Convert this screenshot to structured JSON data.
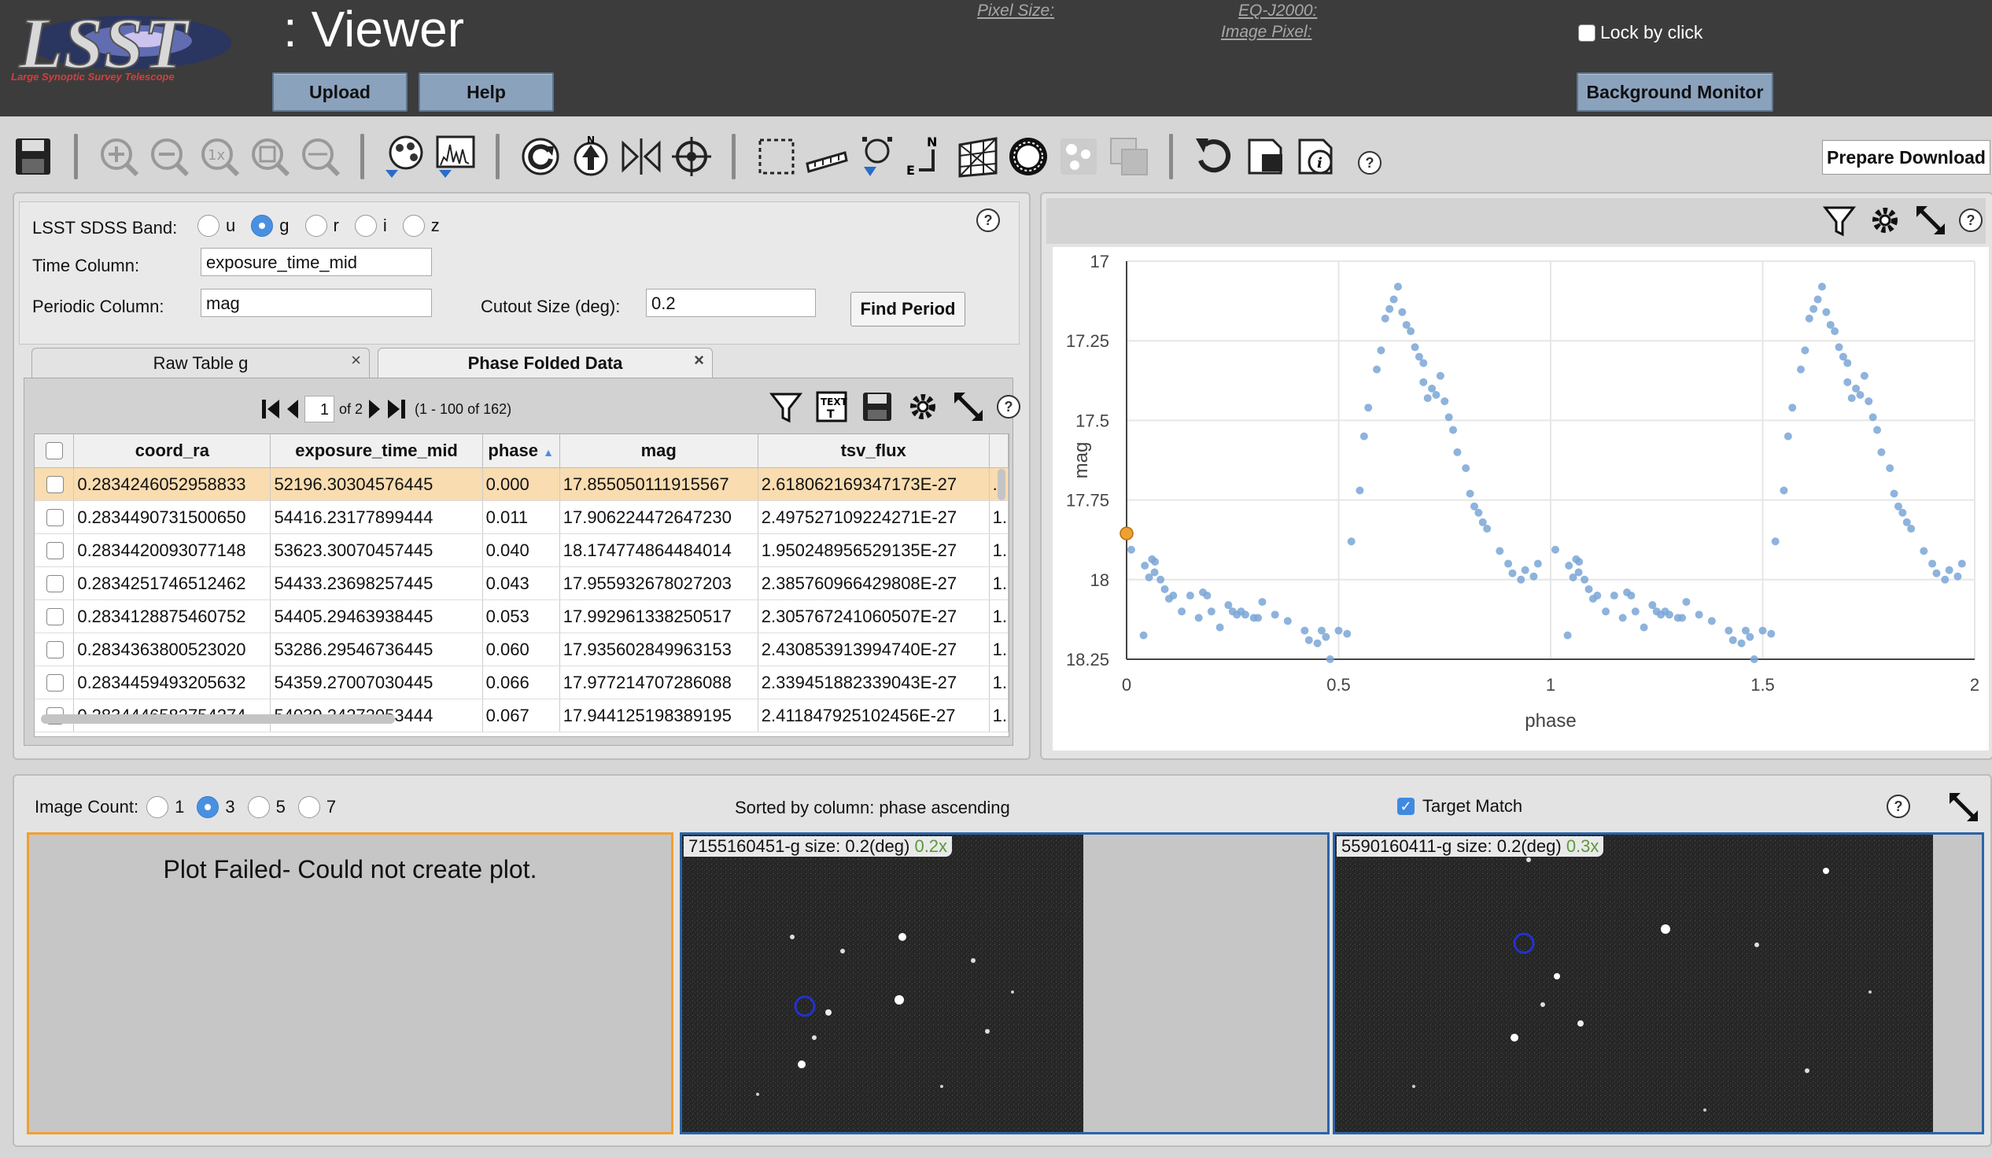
{
  "header": {
    "app_title": ": Viewer",
    "logo_text": "LSST",
    "logo_subtitle": "Large Synoptic Survey Telescope",
    "upload_label": "Upload",
    "help_label": "Help",
    "pixel_size_label": "Pixel Size:",
    "eq_label": "EQ-J2000:",
    "image_pixel_label": "Image Pixel:",
    "lock_label": "Lock by click",
    "background_monitor_label": "Background Monitor"
  },
  "toolbar": {
    "icons": [
      "save-icon",
      "zoom-in-icon",
      "zoom-out-icon",
      "zoom-1x-icon",
      "zoom-fit-icon",
      "zoom-fill-icon",
      "color-stretch-icon",
      "histogram-icon",
      "rotate-icon",
      "north-up-icon",
      "flip-icon",
      "center-target-icon",
      "select-area-icon",
      "distance-tool-icon",
      "marker-icon",
      "north-east-arrow-icon",
      "grid-icon",
      "mask-icon",
      "layers-icon",
      "overlays-icon",
      "restore-icon",
      "crop-icon",
      "info-icon"
    ],
    "prepare_download_label": "Prepare Download",
    "help_symbol": "?"
  },
  "form": {
    "band_label": "LSST SDSS Band:",
    "bands": [
      "u",
      "g",
      "r",
      "i",
      "z"
    ],
    "selected_band": "g",
    "time_column_label": "Time Column:",
    "time_column_value": "exposure_time_mid",
    "periodic_column_label": "Periodic Column:",
    "periodic_column_value": "mag",
    "cutout_label": "Cutout Size (deg):",
    "cutout_value": "0.2",
    "find_period_label": "Find Period"
  },
  "tabs": [
    {
      "label": "Raw Table g",
      "active": false,
      "close": "×"
    },
    {
      "label": "Phase Folded Data",
      "active": true,
      "close": "×"
    }
  ],
  "table": {
    "page_value": "1",
    "page_of": "of 2",
    "range_text": "(1 - 100 of 162)",
    "columns": [
      "coord_ra",
      "exposure_time_mid",
      "phase",
      "mag",
      "tsv_flux"
    ],
    "rows": [
      [
        "0.2834246052958833",
        "52196.30304576445",
        "0.000",
        "17.855050111915567",
        "2.618062169347173E-27",
        "."
      ],
      [
        "0.2834490731500650",
        "54416.23177899444",
        "0.011",
        "17.906224472647230",
        "2.497527109224271E-27",
        "1."
      ],
      [
        "0.2834420093077148",
        "53623.30070457445",
        "0.040",
        "18.174774864484014",
        "1.950248956529135E-27",
        "1."
      ],
      [
        "0.2834251746512462",
        "54433.23698257445",
        "0.043",
        "17.955932678027203",
        "2.385760966429808E-27",
        "1."
      ],
      [
        "0.2834128875460752",
        "54405.29463938445",
        "0.053",
        "17.992961338250517",
        "2.305767241060507E-27",
        "1."
      ],
      [
        "0.2834363800523020",
        "53286.29546736445",
        "0.060",
        "17.935602849963153",
        "2.430853913994740E-27",
        "1."
      ],
      [
        "0.2834459493205632",
        "54359.27007030445",
        "0.066",
        "17.977214707286088",
        "2.339451882339043E-27",
        "1."
      ],
      [
        "0.2834446582754274",
        "54039.24272053444",
        "0.067",
        "17.944125198389195",
        "2.411847925102456E-27",
        "1."
      ]
    ],
    "selected_row": 0
  },
  "chart_data": {
    "type": "scatter",
    "xlabel": "phase",
    "ylabel": "mag",
    "xlim": [
      0,
      2
    ],
    "ylim": [
      18.25,
      17
    ],
    "y_inverted": true,
    "xticks": [
      "0",
      "0.5",
      "1",
      "1.5",
      "2"
    ],
    "yticks": [
      "17",
      "17.25",
      "17.5",
      "17.75",
      "18",
      "18.25"
    ],
    "grid": true,
    "highlight": {
      "x": 0.0,
      "y": 17.855,
      "color": "#f0a030"
    },
    "series": [
      {
        "color": "#7aa6d6",
        "x": [
          0.011,
          0.04,
          0.043,
          0.053,
          0.06,
          0.066,
          0.067,
          0.08,
          0.09,
          0.1,
          0.11,
          0.13,
          0.15,
          0.17,
          0.18,
          0.19,
          0.2,
          0.22,
          0.24,
          0.25,
          0.26,
          0.27,
          0.28,
          0.3,
          0.31,
          0.32,
          0.35,
          0.38,
          0.42,
          0.43,
          0.45,
          0.46,
          0.47,
          0.48,
          0.5,
          0.52,
          0.53,
          0.55,
          0.56,
          0.57,
          0.59,
          0.6,
          0.61,
          0.62,
          0.63,
          0.64,
          0.65,
          0.66,
          0.67,
          0.68,
          0.69,
          0.7,
          0.7,
          0.71,
          0.72,
          0.73,
          0.74,
          0.75,
          0.76,
          0.77,
          0.78,
          0.8,
          0.81,
          0.82,
          0.83,
          0.84,
          0.85,
          0.88,
          0.9,
          0.91,
          0.93,
          0.94,
          0.96,
          0.97
        ],
        "y": [
          17.906,
          18.175,
          17.956,
          17.993,
          17.936,
          17.977,
          17.944,
          18.0,
          18.03,
          18.06,
          18.05,
          18.1,
          18.05,
          18.12,
          18.04,
          18.05,
          18.1,
          18.15,
          18.08,
          18.1,
          18.11,
          18.1,
          18.11,
          18.12,
          18.12,
          18.07,
          18.11,
          18.13,
          18.16,
          18.19,
          18.2,
          18.16,
          18.18,
          18.25,
          18.16,
          18.17,
          17.88,
          17.72,
          17.55,
          17.46,
          17.34,
          17.28,
          17.18,
          17.15,
          17.12,
          17.08,
          17.16,
          17.2,
          17.22,
          17.27,
          17.3,
          17.32,
          17.38,
          17.43,
          17.4,
          17.42,
          17.36,
          17.44,
          17.49,
          17.53,
          17.6,
          17.65,
          17.73,
          17.77,
          17.79,
          17.82,
          17.84,
          17.91,
          17.95,
          17.98,
          18.0,
          17.97,
          17.99,
          17.95
        ]
      },
      {
        "color": "#7aa6d6",
        "x": [
          1.011,
          1.04,
          1.043,
          1.053,
          1.06,
          1.066,
          1.067,
          1.08,
          1.09,
          1.1,
          1.11,
          1.13,
          1.15,
          1.17,
          1.18,
          1.19,
          1.2,
          1.22,
          1.24,
          1.25,
          1.26,
          1.27,
          1.28,
          1.3,
          1.31,
          1.32,
          1.35,
          1.38,
          1.42,
          1.43,
          1.45,
          1.46,
          1.47,
          1.48,
          1.5,
          1.52,
          1.53,
          1.55,
          1.56,
          1.57,
          1.59,
          1.6,
          1.61,
          1.62,
          1.63,
          1.64,
          1.65,
          1.66,
          1.67,
          1.68,
          1.69,
          1.7,
          1.7,
          1.71,
          1.72,
          1.73,
          1.74,
          1.75,
          1.76,
          1.77,
          1.78,
          1.8,
          1.81,
          1.82,
          1.83,
          1.84,
          1.85,
          1.88,
          1.9,
          1.91,
          1.93,
          1.94,
          1.96,
          1.97
        ],
        "y": [
          17.906,
          18.175,
          17.956,
          17.993,
          17.936,
          17.977,
          17.944,
          18.0,
          18.03,
          18.06,
          18.05,
          18.1,
          18.05,
          18.12,
          18.04,
          18.05,
          18.1,
          18.15,
          18.08,
          18.1,
          18.11,
          18.1,
          18.11,
          18.12,
          18.12,
          18.07,
          18.11,
          18.13,
          18.16,
          18.19,
          18.2,
          18.16,
          18.18,
          18.25,
          18.16,
          18.17,
          17.88,
          17.72,
          17.55,
          17.46,
          17.34,
          17.28,
          17.18,
          17.15,
          17.12,
          17.08,
          17.16,
          17.2,
          17.22,
          17.27,
          17.3,
          17.32,
          17.38,
          17.43,
          17.4,
          17.42,
          17.36,
          17.44,
          17.49,
          17.53,
          17.6,
          17.65,
          17.73,
          17.77,
          17.79,
          17.82,
          17.84,
          17.91,
          17.95,
          17.98,
          18.0,
          17.97,
          17.99,
          17.95
        ]
      }
    ]
  },
  "bottom": {
    "image_count_label": "Image Count:",
    "counts": [
      "1",
      "3",
      "5",
      "7"
    ],
    "selected_count": "3",
    "sorted_text": "Sorted by column: phase ascending",
    "target_match_label": "Target Match",
    "plot_failed_text": "Plot Failed- Could not create plot.",
    "images": [
      {
        "title": "7155160451-g size: 0.2(deg)",
        "zoom": "0.2x"
      },
      {
        "title": "5590160411-g size: 0.2(deg)",
        "zoom": "0.3x"
      }
    ]
  }
}
